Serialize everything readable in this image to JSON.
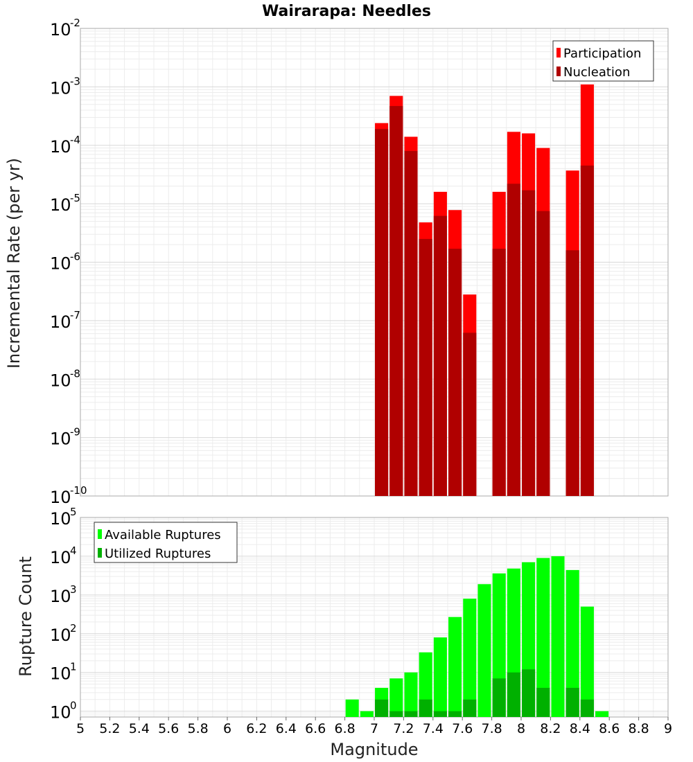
{
  "chart_data": [
    {
      "type": "bar",
      "title": "Wairarapa: Needles",
      "xlabel": "",
      "ylabel": "Incremental Rate (per yr)",
      "yscale": "log",
      "xlim": [
        5,
        9
      ],
      "ylim_exponent": [
        -10,
        -2
      ],
      "ytick_base": "10",
      "ytick_exponents": [
        "-10",
        "-9",
        "-8",
        "-7",
        "-6",
        "-5",
        "-4",
        "-3",
        "-2"
      ],
      "legend_position": "top-right",
      "bar_width": 0.09,
      "series": [
        {
          "name": "Participation",
          "color": "#ff0000",
          "x": [
            7.05,
            7.15,
            7.25,
            7.35,
            7.45,
            7.55,
            7.65,
            7.85,
            7.95,
            8.05,
            8.15,
            8.35,
            8.45
          ],
          "values": [
            0.00024,
            0.0007,
            0.00014,
            4.8e-06,
            1.6e-05,
            7.8e-06,
            2.8e-07,
            1.6e-05,
            0.00017,
            0.00016,
            9e-05,
            3.7e-05,
            0.0011
          ]
        },
        {
          "name": "Nucleation",
          "color": "#b00000",
          "x": [
            7.05,
            7.15,
            7.25,
            7.35,
            7.45,
            7.55,
            7.65,
            7.85,
            7.95,
            8.05,
            8.15,
            8.35,
            8.45
          ],
          "values": [
            0.00019,
            0.00047,
            8e-05,
            2.5e-06,
            6.2e-06,
            1.7e-06,
            6.2e-08,
            1.7e-06,
            2.2e-05,
            1.7e-05,
            7.5e-06,
            1.6e-06,
            4.5e-05
          ]
        }
      ]
    },
    {
      "type": "bar",
      "title": "",
      "xlabel": "Magnitude",
      "ylabel": "Rupture Count",
      "yscale": "log",
      "xlim": [
        5,
        9
      ],
      "ylim_exponent": [
        -0.15,
        5
      ],
      "ytick_base": "10",
      "ytick_exponents": [
        "0",
        "1",
        "2",
        "3",
        "4",
        "5"
      ],
      "xticks": [
        "5",
        "5.2",
        "5.4",
        "5.6",
        "5.8",
        "6",
        "6.2",
        "6.4",
        "6.6",
        "6.8",
        "7",
        "7.2",
        "7.4",
        "7.6",
        "7.8",
        "8",
        "8.2",
        "8.4",
        "8.6",
        "8.8",
        "9"
      ],
      "legend_position": "top-left",
      "bar_width": 0.09,
      "series": [
        {
          "name": "Available Ruptures",
          "color": "#00ff00",
          "x": [
            6.85,
            6.95,
            7.05,
            7.15,
            7.25,
            7.35,
            7.45,
            7.55,
            7.65,
            7.75,
            7.85,
            7.95,
            8.05,
            8.15,
            8.25,
            8.35,
            8.45,
            8.55
          ],
          "values": [
            2,
            1,
            4,
            7,
            10,
            33,
            80,
            270,
            800,
            1900,
            3600,
            4800,
            7000,
            9000,
            10000,
            4400,
            500,
            1
          ]
        },
        {
          "name": "Utilized Ruptures",
          "color": "#00b000",
          "x": [
            7.05,
            7.15,
            7.25,
            7.35,
            7.45,
            7.55,
            7.65,
            7.85,
            7.95,
            8.05,
            8.15,
            8.35,
            8.45
          ],
          "values": [
            2,
            1,
            1,
            2,
            1,
            1,
            2,
            7,
            10,
            12,
            4,
            4,
            2
          ]
        }
      ]
    }
  ]
}
